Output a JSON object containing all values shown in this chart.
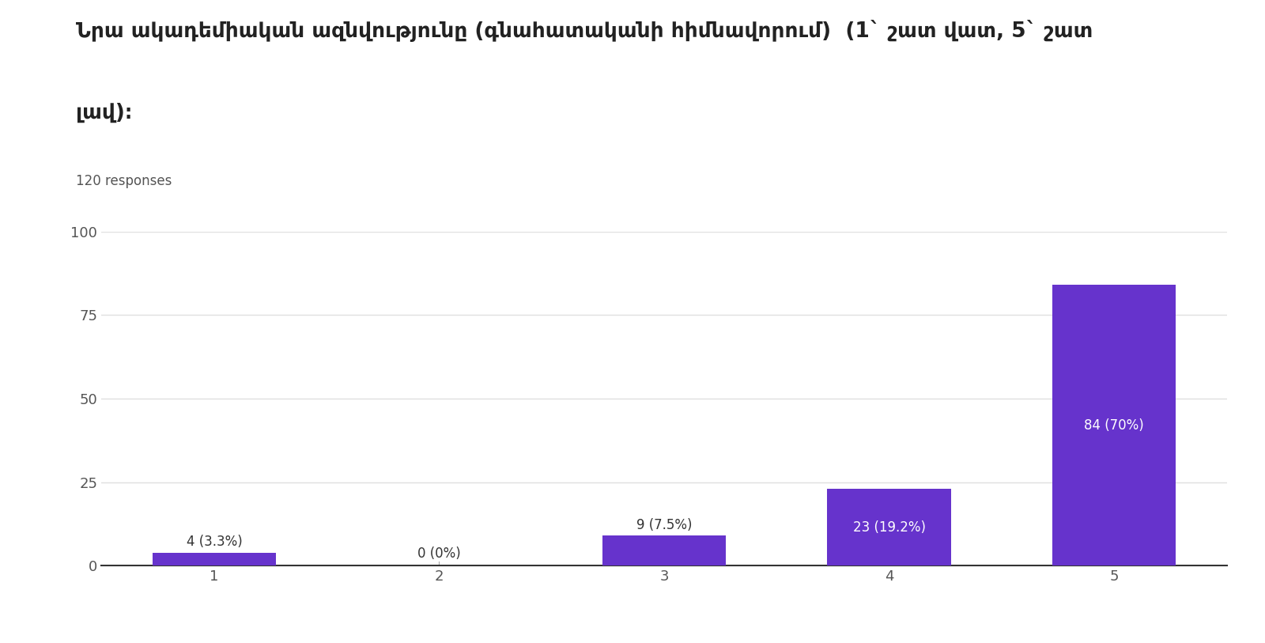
{
  "title_line1": "Նրա ակադեմիական ազնվությունը (գնահատականի հիմնավորում)  (1` շատ վատ, 5` շատ",
  "title_line2": "լավ)։",
  "subtitle": "120 responses",
  "categories": [
    1,
    2,
    3,
    4,
    5
  ],
  "values": [
    4,
    0,
    9,
    23,
    84
  ],
  "labels": [
    "4 (3.3%)",
    "0 (0%)",
    "9 (7.5%)",
    "23 (19.2%)",
    "84 (70%)"
  ],
  "bar_color": "#6633cc",
  "label_color_inside": "#ffffff",
  "label_color_outside": "#333333",
  "background_color": "#ffffff",
  "grid_color": "#e0e0e0",
  "ylim": [
    0,
    100
  ],
  "yticks": [
    0,
    25,
    50,
    75,
    100
  ],
  "title_fontsize": 19,
  "subtitle_fontsize": 12,
  "label_fontsize": 12,
  "tick_fontsize": 13
}
